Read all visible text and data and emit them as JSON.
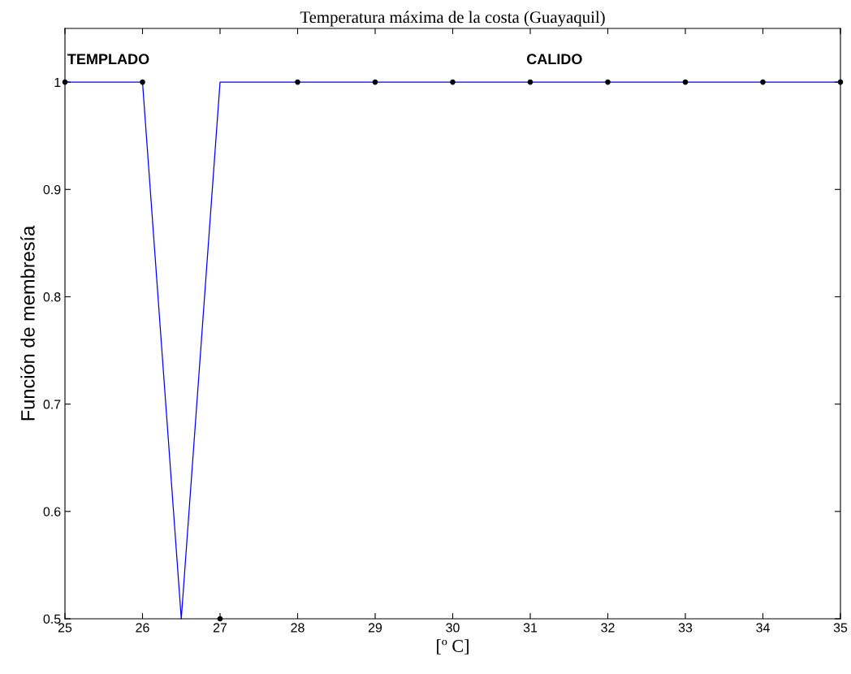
{
  "chart_data": {
    "type": "line",
    "title": "Temperatura máxima de la costa (Guayaquil)",
    "xlabel": "[º C]",
    "ylabel": "Función de membresía",
    "series": [
      {
        "color": "#0000ff",
        "x": [
          25,
          26,
          26.5,
          27,
          35
        ],
        "values": [
          1,
          1,
          0.5,
          1,
          1
        ],
        "marker": "none"
      },
      {
        "type": "scatter",
        "color": "#000000",
        "x": [
          25,
          26,
          27,
          28,
          29,
          30,
          31,
          32,
          33,
          34,
          35
        ],
        "values": [
          1,
          1,
          0.5,
          1,
          1,
          1,
          1,
          1,
          1,
          1,
          1
        ],
        "marker": "circle"
      }
    ],
    "annotations": [
      "TEMPLADO",
      "CALIDO"
    ],
    "xlim": [
      25,
      35
    ],
    "ylim": [
      0.5,
      1.05
    ],
    "xticks": [
      25,
      26,
      27,
      28,
      29,
      30,
      31,
      32,
      33,
      34,
      35
    ],
    "yticks": [
      0.5,
      0.6,
      0.7,
      0.8,
      0.9,
      1
    ],
    "grid": false,
    "legend": false
  }
}
